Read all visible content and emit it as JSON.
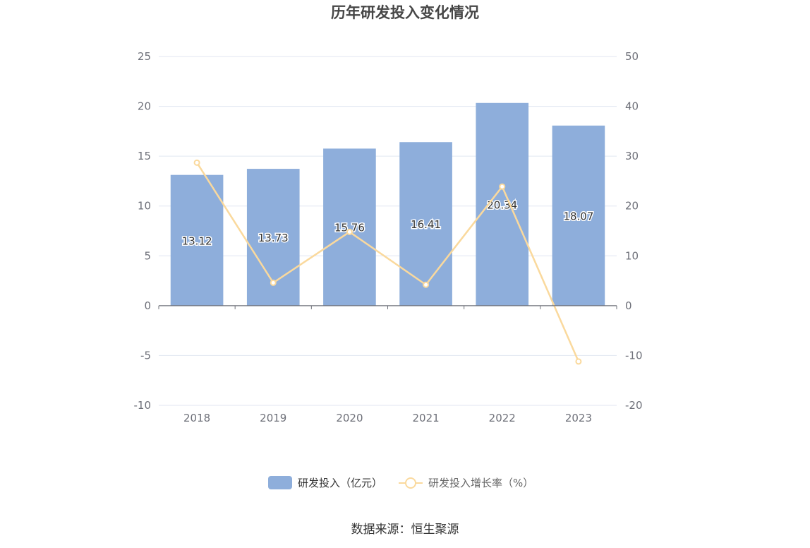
{
  "chart_data": {
    "type": "bar",
    "title": "历年研发投入变化情况",
    "categories": [
      "2018",
      "2019",
      "2020",
      "2021",
      "2022",
      "2023"
    ],
    "series": [
      {
        "name": "研发投入（亿元）",
        "type": "bar",
        "axis": "left",
        "color": "#8eaedb",
        "values": [
          13.12,
          13.73,
          15.76,
          16.41,
          20.34,
          18.07
        ],
        "labels": [
          "13.12",
          "13.73",
          "15.76",
          "16.41",
          "20.34",
          "18.07"
        ]
      },
      {
        "name": "研发投入增长率（%）",
        "type": "line",
        "axis": "right",
        "color": "#fad99d",
        "values": [
          28.7,
          4.6,
          14.8,
          4.2,
          23.9,
          -11.2
        ]
      }
    ],
    "y_left": {
      "min": -10,
      "max": 25,
      "ticks": [
        "25",
        "20",
        "15",
        "10",
        "5",
        "0",
        "-5",
        "-10"
      ]
    },
    "y_right": {
      "min": -20,
      "max": 50,
      "ticks": [
        "50",
        "40",
        "30",
        "20",
        "10",
        "0",
        "-10",
        "-20"
      ]
    },
    "grid": true,
    "legend_position": "bottom"
  },
  "source_text": "数据来源：恒生聚源"
}
